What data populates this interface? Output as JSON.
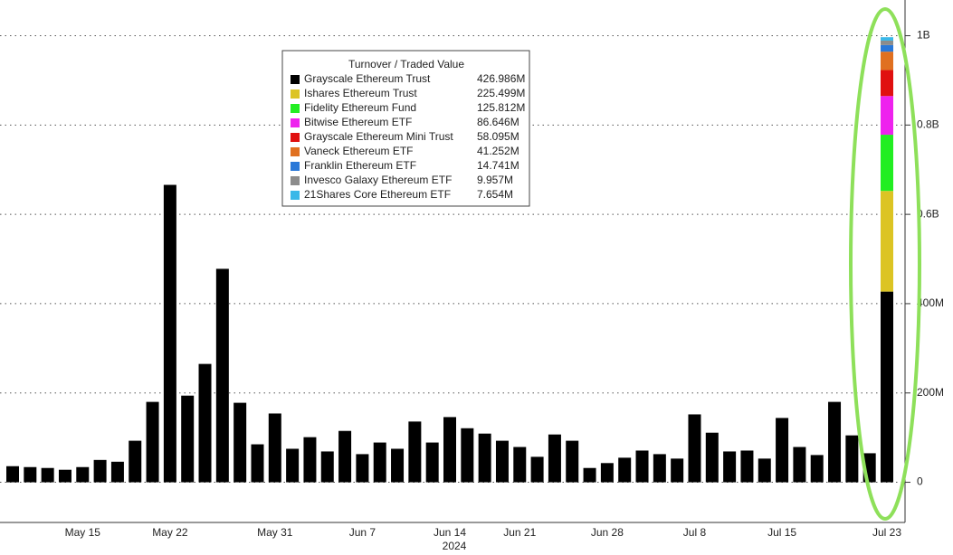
{
  "chart_data": {
    "type": "bar",
    "legend_title": "Turnover / Traded Value",
    "year_label": "2024",
    "categories": [
      null,
      null,
      null,
      null,
      "May 15",
      null,
      null,
      null,
      null,
      "May 22",
      null,
      null,
      null,
      null,
      null,
      "May 31",
      null,
      null,
      null,
      null,
      "Jun 7",
      null,
      null,
      null,
      null,
      "Jun 14",
      null,
      null,
      null,
      "Jun 21",
      null,
      null,
      null,
      null,
      "Jun 28",
      null,
      null,
      null,
      null,
      "Jul 8",
      null,
      null,
      null,
      null,
      "Jul 15",
      null,
      null,
      null,
      null,
      null,
      "Jul 23"
    ],
    "series": [
      {
        "name": "Grayscale Ethereum Trust",
        "color": "#000000",
        "values": [
          36,
          34,
          32,
          28,
          34,
          50,
          46,
          93,
          180,
          666,
          194,
          265,
          478,
          178,
          85,
          154,
          75,
          101,
          69,
          115,
          63,
          89,
          75,
          136,
          89,
          146,
          121,
          109,
          93,
          79,
          57,
          107,
          93,
          32,
          43,
          55,
          71,
          63,
          53,
          152,
          111,
          69,
          71,
          53,
          144,
          79,
          61,
          180,
          105,
          65,
          426.986
        ],
        "value_label": "426.986M"
      },
      {
        "name": "Ishares Ethereum Trust",
        "color": "#dcc424",
        "values": [
          null,
          null,
          null,
          null,
          null,
          null,
          null,
          null,
          null,
          null,
          null,
          null,
          null,
          null,
          null,
          null,
          null,
          null,
          null,
          null,
          null,
          null,
          null,
          null,
          null,
          null,
          null,
          null,
          null,
          null,
          null,
          null,
          null,
          null,
          null,
          null,
          null,
          null,
          null,
          null,
          null,
          null,
          null,
          null,
          null,
          null,
          null,
          null,
          null,
          null,
          225.499
        ],
        "value_label": "225.499M"
      },
      {
        "name": "Fidelity Ethereum Fund",
        "color": "#22ee22",
        "values": [
          null,
          null,
          null,
          null,
          null,
          null,
          null,
          null,
          null,
          null,
          null,
          null,
          null,
          null,
          null,
          null,
          null,
          null,
          null,
          null,
          null,
          null,
          null,
          null,
          null,
          null,
          null,
          null,
          null,
          null,
          null,
          null,
          null,
          null,
          null,
          null,
          null,
          null,
          null,
          null,
          null,
          null,
          null,
          null,
          null,
          null,
          null,
          null,
          null,
          null,
          125.812
        ],
        "value_label": "125.812M"
      },
      {
        "name": "Bitwise Ethereum ETF",
        "color": "#ee22ee",
        "values": [
          null,
          null,
          null,
          null,
          null,
          null,
          null,
          null,
          null,
          null,
          null,
          null,
          null,
          null,
          null,
          null,
          null,
          null,
          null,
          null,
          null,
          null,
          null,
          null,
          null,
          null,
          null,
          null,
          null,
          null,
          null,
          null,
          null,
          null,
          null,
          null,
          null,
          null,
          null,
          null,
          null,
          null,
          null,
          null,
          null,
          null,
          null,
          null,
          null,
          null,
          86.646
        ],
        "value_label": "86.646M"
      },
      {
        "name": "Grayscale Ethereum Mini Trust",
        "color": "#e01010",
        "values": [
          null,
          null,
          null,
          null,
          null,
          null,
          null,
          null,
          null,
          null,
          null,
          null,
          null,
          null,
          null,
          null,
          null,
          null,
          null,
          null,
          null,
          null,
          null,
          null,
          null,
          null,
          null,
          null,
          null,
          null,
          null,
          null,
          null,
          null,
          null,
          null,
          null,
          null,
          null,
          null,
          null,
          null,
          null,
          null,
          null,
          null,
          null,
          null,
          null,
          null,
          58.095
        ],
        "value_label": "58.095M"
      },
      {
        "name": "Vaneck Ethereum ETF",
        "color": "#e07020",
        "values": [
          null,
          null,
          null,
          null,
          null,
          null,
          null,
          null,
          null,
          null,
          null,
          null,
          null,
          null,
          null,
          null,
          null,
          null,
          null,
          null,
          null,
          null,
          null,
          null,
          null,
          null,
          null,
          null,
          null,
          null,
          null,
          null,
          null,
          null,
          null,
          null,
          null,
          null,
          null,
          null,
          null,
          null,
          null,
          null,
          null,
          null,
          null,
          null,
          null,
          null,
          41.252
        ],
        "value_label": "41.252M"
      },
      {
        "name": "Franklin Ethereum ETF",
        "color": "#2a78d8",
        "values": [
          null,
          null,
          null,
          null,
          null,
          null,
          null,
          null,
          null,
          null,
          null,
          null,
          null,
          null,
          null,
          null,
          null,
          null,
          null,
          null,
          null,
          null,
          null,
          null,
          null,
          null,
          null,
          null,
          null,
          null,
          null,
          null,
          null,
          null,
          null,
          null,
          null,
          null,
          null,
          null,
          null,
          null,
          null,
          null,
          null,
          null,
          null,
          null,
          null,
          null,
          14.741
        ],
        "value_label": "14.741M"
      },
      {
        "name": "Invesco Galaxy Ethereum ETF",
        "color": "#8c8c8c",
        "values": [
          null,
          null,
          null,
          null,
          null,
          null,
          null,
          null,
          null,
          null,
          null,
          null,
          null,
          null,
          null,
          null,
          null,
          null,
          null,
          null,
          null,
          null,
          null,
          null,
          null,
          null,
          null,
          null,
          null,
          null,
          null,
          null,
          null,
          null,
          null,
          null,
          null,
          null,
          null,
          null,
          null,
          null,
          null,
          null,
          null,
          null,
          null,
          null,
          null,
          null,
          9.957
        ],
        "value_label": "9.957M"
      },
      {
        "name": "21Shares Core Ethereum ETF",
        "color": "#3ab8e8",
        "values": [
          null,
          null,
          null,
          null,
          null,
          null,
          null,
          null,
          null,
          null,
          null,
          null,
          null,
          null,
          null,
          null,
          null,
          null,
          null,
          null,
          null,
          null,
          null,
          null,
          null,
          null,
          null,
          null,
          null,
          null,
          null,
          null,
          null,
          null,
          null,
          null,
          null,
          null,
          null,
          null,
          null,
          null,
          null,
          null,
          null,
          null,
          null,
          null,
          null,
          null,
          7.654
        ],
        "value_label": "7.654M"
      }
    ],
    "ylim": [
      -90,
      1080
    ],
    "yticks": [
      0,
      {
        "value": 200,
        "label": "200M"
      },
      {
        "value": 400,
        "label": "400M"
      },
      {
        "value": 600,
        "label": "0.6B"
      },
      {
        "value": 800,
        "label": "0.8B"
      },
      {
        "value": 1000,
        "label": "1B"
      }
    ],
    "grid": true
  }
}
